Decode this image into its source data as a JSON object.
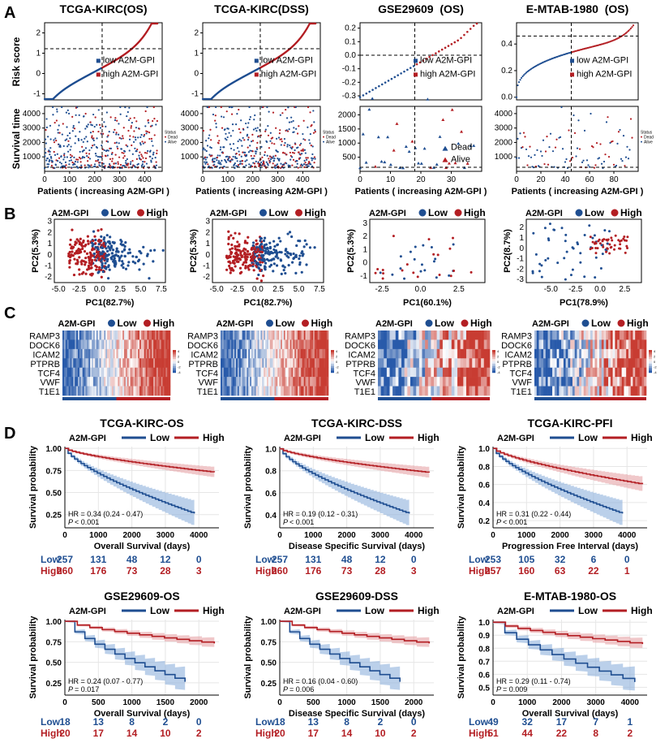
{
  "colors": {
    "low": "#1f4e91",
    "high": "#b31e23",
    "lowFill": "#8db0dc",
    "highFill": "#e6a3a6",
    "grid": "#e6e6e6"
  },
  "panel_letters": {
    "a": "A",
    "b": "B",
    "c": "C",
    "d": "D"
  },
  "groups": {
    "name": "A2M-GPI",
    "low": "Low",
    "high": "High",
    "low_full": "low A2M-GPI",
    "high_full": "high A2M-GPI"
  },
  "cohorts": [
    {
      "title": "TCGA-KIRC(OS)",
      "pc_x": "PC1(82.7%)",
      "pc_y": "PC2(5.3%)"
    },
    {
      "title": "TCGA-KIRC(DSS)",
      "pc_x": "PC1(82.7%)",
      "pc_y": "PC2(5.3%)"
    },
    {
      "title": "GSE29609  (OS)",
      "pc_x": "PC1(60.1%)",
      "pc_y": "PC2(5.3%)"
    },
    {
      "title": "E-MTAB-1980  (OS)",
      "pc_x": "PC1(78.9%)",
      "pc_y": "PC2(8.7%)"
    }
  ],
  "risk_panel": {
    "ylabel_score": "Risk score",
    "ylabel_time": "Survival time",
    "xlabel": "Patients ( increasing A2M-GPI )",
    "status_title": "Status",
    "dead": "Dead",
    "alive": "Alive"
  },
  "heatmap": {
    "genes": [
      "RAMP3",
      "DOCK6",
      "ICAM2",
      "PTPRB",
      "TCF4",
      "VWF",
      "T1E1"
    ],
    "scale": [
      "4",
      "2",
      "0",
      "-2",
      "-4"
    ]
  },
  "km_common": {
    "ylabel": "Survival probability",
    "low_row": "Low",
    "high_row": "High"
  },
  "chart_data": [
    {
      "type": "line",
      "title": "TCGA-KIRC(OS) risk score",
      "xlim": [
        0,
        470
      ],
      "ylim": [
        -1.3,
        2.5
      ],
      "yticks": [
        "2",
        "1",
        "0",
        "-1"
      ],
      "xticks": [
        "0",
        "100",
        "200",
        "300",
        "400"
      ],
      "cut": 230,
      "hline": 1.22
    },
    {
      "type": "line",
      "title": "TCGA-KIRC(DSS) risk score",
      "xlim": [
        0,
        470
      ],
      "ylim": [
        -1.3,
        2.5
      ],
      "yticks": [
        "2",
        "1",
        "0",
        "-1"
      ],
      "xticks": [
        "0",
        "100",
        "200",
        "300",
        "400"
      ],
      "cut": 230,
      "hline": 1.22
    },
    {
      "type": "scatter",
      "title": "GSE29609 (OS) risk score",
      "xlim": [
        0,
        40
      ],
      "ylim": [
        -0.33,
        0.24
      ],
      "yticks": [
        "0.2",
        "0.1",
        "0.0",
        "-0.1",
        "-0.2",
        "-0.3"
      ],
      "xticks": [
        "0",
        "10",
        "20",
        "30"
      ],
      "cut": 18,
      "hline": 0.0
    },
    {
      "type": "line",
      "title": "E-MTAB-1980 (OS) risk score",
      "xlim": [
        0,
        100
      ],
      "ylim": [
        -0.02,
        0.56
      ],
      "yticks": [
        "0.4",
        "0.2",
        "0.0"
      ],
      "xticks": [
        "0",
        "20",
        "40",
        "60",
        "80"
      ],
      "cut": 45,
      "hline": 0.46
    },
    {
      "type": "scatter",
      "title": "TCGA-KIRC(OS) survival time",
      "ylim": [
        0,
        4500
      ],
      "yticks": [
        "4000",
        "3000",
        "2000",
        "1000"
      ]
    },
    {
      "type": "scatter",
      "title": "TCGA-KIRC(DSS) survival time",
      "ylim": [
        0,
        4500
      ],
      "yticks": [
        "4000",
        "3000",
        "2000",
        "1000"
      ]
    },
    {
      "type": "scatter",
      "title": "GSE29609 (OS) survival time",
      "ylim": [
        0,
        2300
      ],
      "yticks": [
        "2000",
        "1500",
        "1000",
        "500"
      ]
    },
    {
      "type": "scatter",
      "title": "E-MTAB-1980 (OS) survival time",
      "ylim": [
        0,
        4500
      ],
      "yticks": [
        "4000",
        "3000",
        "2000",
        "1000"
      ]
    },
    {
      "type": "scatter",
      "title": "PCA TCGA-KIRC(OS)",
      "xlim": [
        -5.5,
        8
      ],
      "ylim": [
        -2.5,
        3.2
      ],
      "xticks": [
        "-5.0",
        "-2.5",
        "0.0",
        "2.5",
        "5.0",
        "7.5"
      ],
      "yticks": [
        "3",
        "2",
        "1",
        "0",
        "-1",
        "-2"
      ]
    },
    {
      "type": "scatter",
      "title": "PCA TCGA-KIRC(DSS)",
      "xlim": [
        -5.5,
        8
      ],
      "ylim": [
        -2.5,
        3.2
      ],
      "xticks": [
        "-5.0",
        "-2.5",
        "0.0",
        "2.5",
        "5.0",
        "7.5"
      ],
      "yticks": [
        "3",
        "2",
        "1",
        "0",
        "-1",
        "-2"
      ]
    },
    {
      "type": "scatter",
      "title": "PCA GSE29609",
      "xlim": [
        -3.3,
        4.2
      ],
      "ylim": [
        -1.5,
        3.3
      ],
      "xticks": [
        "-2.5",
        "0.0",
        "2.5"
      ],
      "yticks": [
        "3",
        "2",
        "1",
        "0",
        "-1"
      ]
    },
    {
      "type": "scatter",
      "title": "PCA E-MTAB-1980",
      "xlim": [
        -7.5,
        4.2
      ],
      "ylim": [
        -3.3,
        2.8
      ],
      "xticks": [
        "-5.0",
        "-2.5",
        "0.0",
        "2.5"
      ],
      "yticks": [
        "2",
        "1",
        "0",
        "-1",
        "-2",
        "-3"
      ]
    },
    {
      "type": "line",
      "title": "TCGA-KIRC-OS",
      "xlabel": "Overall Survival (days)",
      "xlim": [
        0,
        4600
      ],
      "ylim": [
        0.1,
        1.02
      ],
      "xticks": [
        "0",
        "1000",
        "2000",
        "3000",
        "4000"
      ],
      "yticks": [
        "1.00",
        "0.75",
        "0.50",
        "0.25"
      ],
      "hr": "HR = 0.34 (0.24 - 0.47)",
      "p": "< 0.001",
      "risk_low": [
        "257",
        "131",
        "48",
        "12",
        "0"
      ],
      "risk_high": [
        "260",
        "176",
        "73",
        "28",
        "3"
      ]
    },
    {
      "type": "line",
      "title": "TCGA-KIRC-DSS",
      "xlabel": "Disease Specific Survival (days)",
      "xlim": [
        0,
        4600
      ],
      "ylim": [
        0.28,
        1.02
      ],
      "xticks": [
        "0",
        "1000",
        "2000",
        "3000",
        "4000"
      ],
      "yticks": [
        "1.0",
        "0.8",
        "0.6",
        "0.4"
      ],
      "hr": "HR = 0.19 (0.12 - 0.31)",
      "p": "< 0.001",
      "risk_low": [
        "257",
        "131",
        "48",
        "12",
        "0"
      ],
      "risk_high": [
        "260",
        "176",
        "73",
        "28",
        "3"
      ]
    },
    {
      "type": "line",
      "title": "TCGA-KIRC-PFI",
      "xlabel": "Progression Free Interval (days)",
      "xlim": [
        0,
        4600
      ],
      "ylim": [
        0.12,
        1.02
      ],
      "xticks": [
        "0",
        "1000",
        "2000",
        "3000",
        "4000"
      ],
      "yticks": [
        "1.0",
        "0.8",
        "0.6",
        "0.4",
        "0.2"
      ],
      "hr": "HR = 0.31 (0.22 - 0.44)",
      "p": "< 0.001",
      "risk_low": [
        "253",
        "105",
        "32",
        "6",
        "0"
      ],
      "risk_high": [
        "257",
        "160",
        "63",
        "22",
        "1"
      ]
    },
    {
      "type": "line",
      "title": "GSE29609-OS",
      "xlabel": "Overall Survival (days)",
      "xlim": [
        0,
        2300
      ],
      "ylim": [
        0.1,
        1.02
      ],
      "xticks": [
        "0",
        "500",
        "1000",
        "1500",
        "2000"
      ],
      "yticks": [
        "1.00",
        "0.75",
        "0.50",
        "0.25"
      ],
      "hr": "HR = 0.24 (0.07 - 0.77)",
      "p": "= 0.017",
      "risk_low": [
        "18",
        "13",
        "8",
        "2",
        "0"
      ],
      "risk_high": [
        "20",
        "17",
        "14",
        "10",
        "2"
      ]
    },
    {
      "type": "line",
      "title": "GSE29609-DSS",
      "xlabel": "Disease Specific Survival (days)",
      "xlim": [
        0,
        2300
      ],
      "ylim": [
        0.1,
        1.02
      ],
      "xticks": [
        "0",
        "500",
        "1000",
        "1500",
        "2000"
      ],
      "yticks": [
        "1.00",
        "0.75",
        "0.50",
        "0.25"
      ],
      "hr": "HR = 0.16 (0.04 - 0.60)",
      "p": "= 0.006",
      "risk_low": [
        "18",
        "13",
        "8",
        "2",
        "0"
      ],
      "risk_high": [
        "20",
        "17",
        "14",
        "10",
        "2"
      ]
    },
    {
      "type": "line",
      "title": "E-MTAB-1980-OS",
      "xlabel": "Overall Survival (days)",
      "xlim": [
        0,
        4500
      ],
      "ylim": [
        0.44,
        1.02
      ],
      "xticks": [
        "0",
        "1000",
        "2000",
        "3000",
        "4000"
      ],
      "yticks": [
        "1.0",
        "0.9",
        "0.8",
        "0.7",
        "0.6",
        "0.5"
      ],
      "hr": "HR = 0.29 (0.11 - 0.74)",
      "p": "= 0.009",
      "risk_low": [
        "49",
        "32",
        "17",
        "7",
        "1"
      ],
      "risk_high": [
        "51",
        "44",
        "22",
        "8",
        "2"
      ]
    }
  ]
}
